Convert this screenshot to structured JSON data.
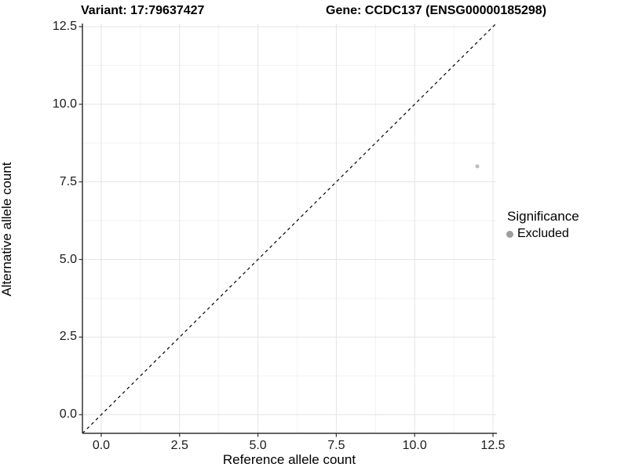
{
  "header": {
    "variant_title": "Variant: 17:79637427",
    "gene_title": "Gene: CCDC137 (ENSG00000185298)"
  },
  "legend": {
    "title": "Significance",
    "position": "right",
    "items": [
      {
        "label": "Excluded",
        "color": "#9e9e9e"
      }
    ]
  },
  "colors": {
    "background": "#ffffff",
    "grid_major": "#e4e4e4",
    "grid_minor": "#f2f2f2",
    "axis_line": "#333333",
    "tick_mark": "#333333",
    "tick_label": "#1a1a1a",
    "reference_line": "#000000",
    "point": "#bdbdbd"
  },
  "chart_data": {
    "type": "scatter",
    "title": "Variant: 17:79637427   Gene: CCDC137 (ENSG00000185298)",
    "xlabel": "Reference allele count",
    "ylabel": "Alternative allele count",
    "xlim": [
      -0.6,
      12.6
    ],
    "ylim": [
      -0.6,
      12.6
    ],
    "x_ticks": [
      0.0,
      2.5,
      5.0,
      7.5,
      10.0,
      12.5
    ],
    "y_ticks": [
      0.0,
      2.5,
      5.0,
      7.5,
      10.0,
      12.5
    ],
    "x_tick_labels": [
      "0.0",
      "2.5",
      "5.0",
      "7.5",
      "10.0",
      "12.5"
    ],
    "y_tick_labels": [
      "0.0",
      "2.5",
      "5.0",
      "7.5",
      "10.0",
      "12.5"
    ],
    "x_minor_ticks": [
      1.25,
      3.75,
      6.25,
      8.75,
      11.25
    ],
    "y_minor_ticks": [
      1.25,
      3.75,
      6.25,
      8.75,
      11.25
    ],
    "grid": true,
    "legend_position": "right",
    "series": [
      {
        "name": "Excluded",
        "color": "#bdbdbd",
        "point_radius": 2.5,
        "points": [
          {
            "x": 12,
            "y": 8
          }
        ]
      }
    ],
    "reference_line": {
      "style": "dashed",
      "color": "#000000",
      "x1": -0.6,
      "y1": -0.6,
      "x2": 12.6,
      "y2": 12.6,
      "meaning": "y = x identity line"
    }
  }
}
